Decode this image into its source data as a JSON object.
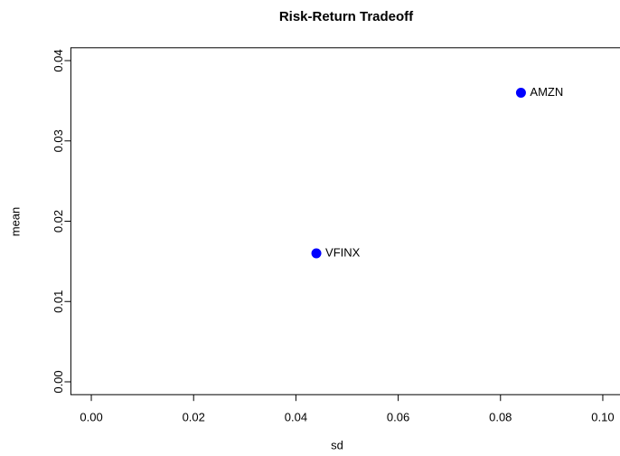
{
  "chart_data": {
    "type": "scatter",
    "title": "Risk-Return Tradeoff",
    "x_label": "sd",
    "y_label": "mean",
    "points": [
      {
        "label": "AMZN",
        "x": 0.084,
        "y": 0.036
      },
      {
        "label": "VFINX",
        "x": 0.044,
        "y": 0.016
      }
    ],
    "color": "#0000ff",
    "xlim": [
      -0.004,
      0.104
    ],
    "ylim": [
      -0.0016,
      0.0416
    ],
    "xticks": [
      {
        "value": 0,
        "label": "0.00"
      },
      0.02,
      0.04,
      0.06,
      0.08,
      {
        "value": 0.1,
        "label": "0.10"
      }
    ],
    "yticks": [
      {
        "value": 0,
        "label": "0.00"
      },
      0.01,
      0.02,
      0.03,
      0.04
    ]
  }
}
